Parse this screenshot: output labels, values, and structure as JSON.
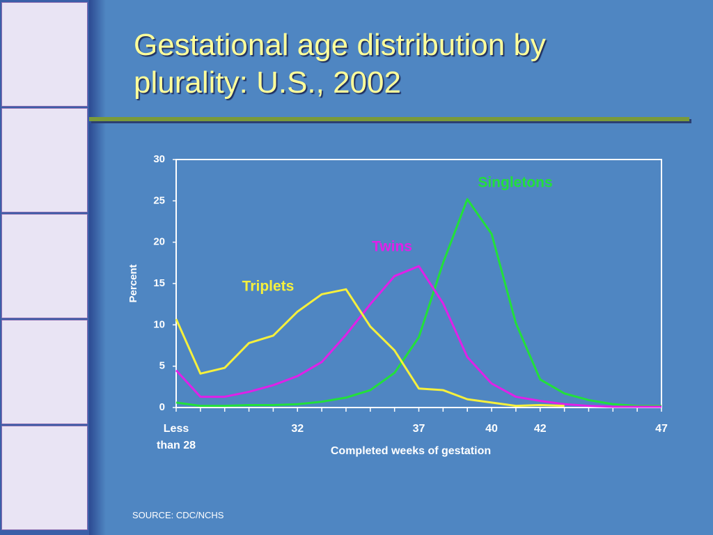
{
  "chart_data": {
    "type": "line",
    "title": "Gestational age distribution by plurality: U.S., 2002",
    "x_label": "Completed weeks of gestation",
    "y_label": "Percent",
    "source": "SOURCE: CDC/NCHS",
    "categories": [
      "Less than 28",
      null,
      null,
      null,
      null,
      "32",
      null,
      null,
      null,
      null,
      "37",
      null,
      null,
      "40",
      null,
      "42",
      null,
      null,
      null,
      null,
      "47"
    ],
    "ylim": [
      0,
      30
    ],
    "yticks": [
      0,
      5,
      10,
      15,
      20,
      25,
      30
    ],
    "series": [
      {
        "name": "Singletons",
        "color": "#22e03a",
        "values": [
          0.6,
          0.2,
          0.2,
          0.3,
          0.3,
          0.4,
          0.7,
          1.2,
          2.1,
          4.2,
          8.5,
          17.5,
          25.2,
          21,
          10.2,
          3.4,
          1.7,
          0.9,
          0.4,
          0.2,
          0.2
        ]
      },
      {
        "name": "Twins",
        "color": "#e020e8",
        "values": [
          4.5,
          1.3,
          1.3,
          1.9,
          2.7,
          3.8,
          5.5,
          8.8,
          12.5,
          15.9,
          17.1,
          12.6,
          6.1,
          2.9,
          1.3,
          0.8,
          0.4,
          0.2,
          0.1,
          0.1,
          0.1
        ]
      },
      {
        "name": "Triplets",
        "color": "#f6f03c",
        "values": [
          10.7,
          4.1,
          4.8,
          7.8,
          8.7,
          11.6,
          13.7,
          14.3,
          9.8,
          6.9,
          2.3,
          2.1,
          1.0,
          0.6,
          0.2,
          0.3,
          0.2,
          null,
          null,
          null,
          null
        ]
      }
    ]
  }
}
